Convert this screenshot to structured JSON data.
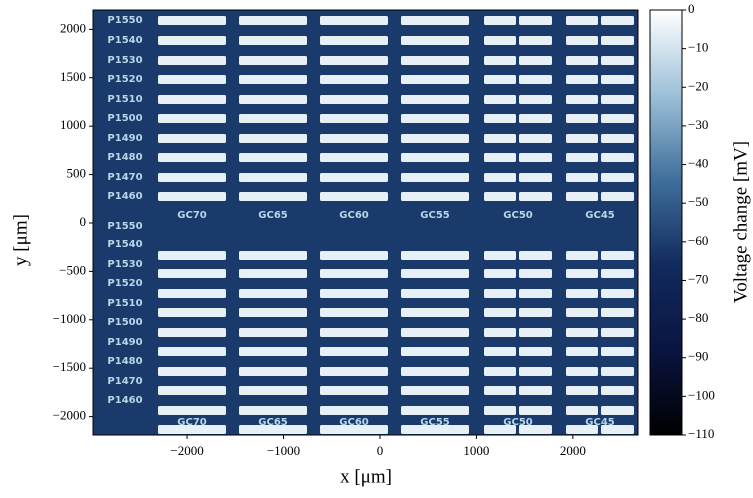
{
  "chart_data": {
    "type": "image",
    "xlabel": "x [μm]",
    "ylabel": "y [μm]",
    "xlim": [
      -2975,
      2675
    ],
    "ylim": [
      -2190,
      2200
    ],
    "xticks": [
      {
        "value": -2000,
        "label": "−2000"
      },
      {
        "value": -1000,
        "label": "−1000"
      },
      0,
      1000,
      2000
    ],
    "yticks": [
      {
        "value": -2000,
        "label": "−2000"
      },
      {
        "value": -1500,
        "label": "−1500"
      },
      {
        "value": -1000,
        "label": "−1000"
      },
      {
        "value": -500,
        "label": "−500"
      },
      0,
      500,
      1000,
      1500,
      2000
    ],
    "colorbar": {
      "label": "Voltage change [mV]",
      "clim": [
        -110,
        0
      ],
      "ticks": [
        0,
        {
          "value": -10,
          "label": "−10"
        },
        {
          "value": -20,
          "label": "−20"
        },
        {
          "value": -30,
          "label": "−30"
        },
        {
          "value": -40,
          "label": "−40"
        },
        {
          "value": -50,
          "label": "−50"
        },
        {
          "value": -60,
          "label": "−60"
        },
        {
          "value": -70,
          "label": "−70"
        },
        {
          "value": -80,
          "label": "−80"
        },
        {
          "value": -90,
          "label": "−90"
        },
        {
          "value": -100,
          "label": "−100"
        },
        {
          "value": -110,
          "label": "−110"
        }
      ],
      "colors": [
        "#000000",
        "#0a1440",
        "#122a5e",
        "#3f6f9c",
        "#9dc0d8",
        "#ffffff"
      ]
    },
    "image_labels": {
      "rows": [
        "P1550",
        "P1540",
        "P1530",
        "P1520",
        "P1510",
        "P1500",
        "P1490",
        "P1480",
        "P1470",
        "P1460"
      ],
      "columns": [
        "GC70",
        "GC65",
        "GC60",
        "GC55",
        "GC50",
        "GC45"
      ]
    }
  }
}
